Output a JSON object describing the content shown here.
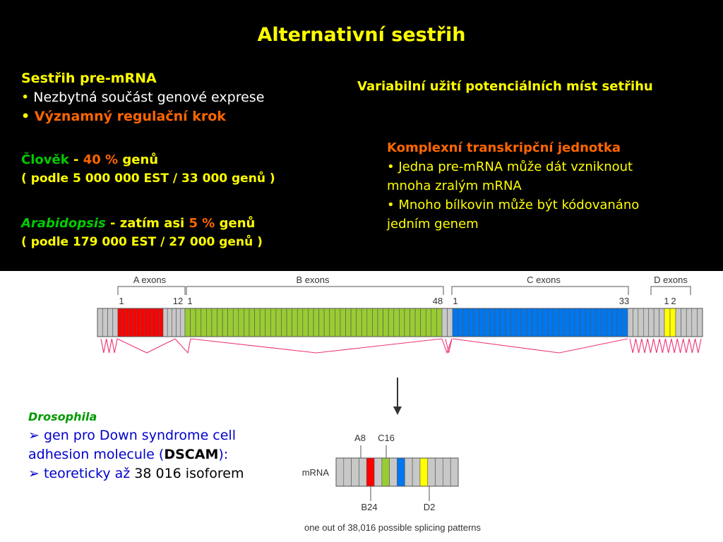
{
  "slide": {
    "title": "Alternativní sestřih",
    "left_block": {
      "heading": "Sestřih pre-mRNA",
      "bullet_symbol": "•",
      "bullet1": "Nezbytná součást genové exprese",
      "bullet2": "Významný regulační krok"
    },
    "human": {
      "name": "Člověk",
      "dash": "-",
      "percent": "40 %",
      "suffix": "genů",
      "detail": "( podle 5 000 000 EST / 33 000 genů )"
    },
    "arabidopsis": {
      "name": "Arabidopsis",
      "middle": "- zatím asi",
      "percent": "5 %",
      "suffix": "genů",
      "detail": "( podle 179 000 EST / 27 000 genů )"
    },
    "right_block": {
      "heading": "Variabilní užití potenciálních míst setřihu",
      "sub_heading": "Komplexní transkripční jednotka",
      "bullet1_line1": "• Jedna pre-mRNA může dát vzniknout",
      "bullet1_line2": "mnoha zralým mRNA",
      "bullet2_line1": "• Mnoho bílkovin může být kódovanáno",
      "bullet2_line2": "jedním genem"
    },
    "drosophila": {
      "name": "Drosophila",
      "arrow_symbol": "➢",
      "line1": "gen pro Down syndrome cell",
      "line2_prefix": "adhesion molecule (",
      "gene": "DSCAM",
      "line2_suffix": "):",
      "line3_prefix": "teoreticky až",
      "line3_value": "38 016 isoforem"
    }
  },
  "diagram": {
    "groups": [
      {
        "label": "A exons",
        "first": "1",
        "last": "12",
        "color": "#ff0000"
      },
      {
        "label": "B exons",
        "first": "1",
        "last": "48",
        "color": "#99cc33"
      },
      {
        "label": "C exons",
        "first": "1",
        "last": "33",
        "color": "#0077ee"
      },
      {
        "label": "D exons",
        "first": "1",
        "last": "2",
        "color": "#ffff00"
      }
    ],
    "constitutive_exon_color": "#c8c8c8",
    "splice_line_color": "#ee3377",
    "mrna_label": "mRNA",
    "selected_exons": [
      "A8",
      "C16",
      "B24",
      "D2"
    ],
    "caption": "one out of 38,016 possible splicing patterns"
  }
}
